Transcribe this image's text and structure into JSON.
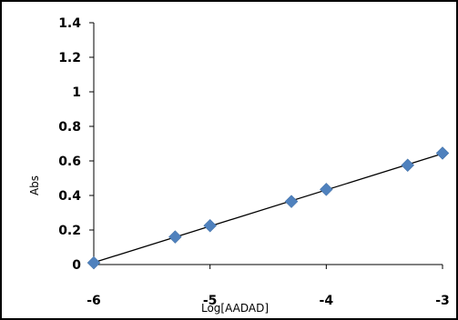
{
  "chart_data": {
    "type": "scatter",
    "title": "",
    "xlabel": "Log[AADAD]",
    "ylabel": "Abs",
    "xlim": [
      -6,
      -3
    ],
    "ylim": [
      0,
      1.4
    ],
    "x_ticks": [
      -6,
      -5,
      -4,
      -3
    ],
    "x_tick_labels": [
      "-6",
      "-5",
      "-4",
      "-3"
    ],
    "y_ticks": [
      0,
      0.2,
      0.4,
      0.6,
      0.8,
      1,
      1.2,
      1.4
    ],
    "y_tick_labels": [
      "0",
      "0.2",
      "0.4",
      "0.6",
      "0.8",
      "1",
      "1.2",
      "1.4"
    ],
    "grid": false,
    "legend": "none",
    "series": [
      {
        "marker": "diamond",
        "color": "#4f81bd",
        "points": [
          {
            "x": -6.0,
            "y": 0.01
          },
          {
            "x": -5.3,
            "y": 0.16
          },
          {
            "x": -5.0,
            "y": 0.225
          },
          {
            "x": -4.3,
            "y": 0.365
          },
          {
            "x": -4.0,
            "y": 0.435
          },
          {
            "x": -3.3,
            "y": 0.575
          },
          {
            "x": -3.0,
            "y": 0.645
          }
        ]
      }
    ],
    "trendline": {
      "type": "linear",
      "color": "#000000"
    }
  }
}
